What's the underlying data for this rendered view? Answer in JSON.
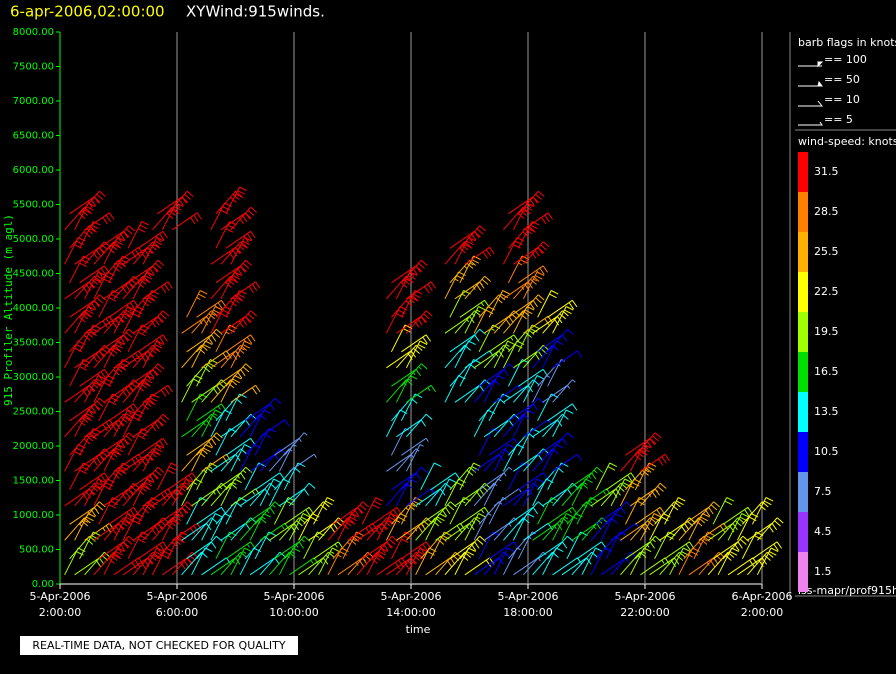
{
  "chart_data": {
    "type": "barb",
    "title": "6-apr-2006,02:00:00",
    "subtitle": "XYWind:915winds.",
    "x_label": "time",
    "y_label": "915 Profiler Altitude (m agl)",
    "note": "REAL-TIME DATA, NOT CHECKED FOR QUALITY",
    "source": "iss-mapr/prof915h",
    "xlim": [
      2,
      26
    ],
    "xticks": [
      {
        "value": 2,
        "label": "5-Apr-2006 2:00:00"
      },
      {
        "value": 6,
        "label": "5-Apr-2006 6:00:00"
      },
      {
        "value": 10,
        "label": "5-Apr-2006 10:00:00"
      },
      {
        "value": 14,
        "label": "5-Apr-2006 14:00:00"
      },
      {
        "value": 18,
        "label": "5-Apr-2006 18:00:00"
      },
      {
        "value": 22,
        "label": "5-Apr-2006 22:00:00"
      },
      {
        "value": 26,
        "label": "6-Apr-2006 2:00:00"
      }
    ],
    "ylim": [
      0,
      8000
    ],
    "yticks": [
      {
        "value": 0,
        "label": "0.00"
      },
      {
        "value": 500,
        "label": "500.00"
      },
      {
        "value": 1000,
        "label": "1000.00"
      },
      {
        "value": 1500,
        "label": "1500.00"
      },
      {
        "value": 2000,
        "label": "2000.00"
      },
      {
        "value": 2500,
        "label": "2500.00"
      },
      {
        "value": 3000,
        "label": "3000.00"
      },
      {
        "value": 3500,
        "label": "3500.00"
      },
      {
        "value": 4000,
        "label": "4000.00"
      },
      {
        "value": 4500,
        "label": "4500.00"
      },
      {
        "value": 5000,
        "label": "5000.00"
      },
      {
        "value": 5500,
        "label": "5500.00"
      },
      {
        "value": 6000,
        "label": "6000.00"
      },
      {
        "value": 6500,
        "label": "6500.00"
      },
      {
        "value": 7000,
        "label": "7000.00"
      },
      {
        "value": 7500,
        "label": "7500.00"
      },
      {
        "value": 8000,
        "label": "8000.00"
      }
    ],
    "grid": true,
    "heights": [
      250,
      750,
      1250,
      1750,
      2250,
      2750,
      3250,
      3750,
      4250,
      4750,
      5250,
      5750
    ],
    "profiles": [
      {
        "x": 2.5,
        "speeds": [
          20,
          25,
          30,
          32,
          32,
          32,
          32,
          32,
          32,
          33,
          33,
          null
        ]
      },
      {
        "x": 3.5,
        "speeds": [
          30,
          32,
          33,
          33,
          33,
          33,
          33,
          33,
          32,
          32,
          null,
          null
        ]
      },
      {
        "x": 4.5,
        "speeds": [
          30,
          32,
          32,
          32,
          32,
          32,
          32,
          32,
          32,
          32,
          null,
          null
        ]
      },
      {
        "x": 5.5,
        "speeds": [
          32,
          32,
          30,
          null,
          null,
          null,
          null,
          null,
          null,
          null,
          32,
          null
        ]
      },
      {
        "x": 6.5,
        "speeds": [
          12,
          14,
          18,
          24,
          16,
          20,
          24,
          27,
          null,
          null,
          null,
          null
        ]
      },
      {
        "x": 7.5,
        "speeds": [
          15,
          12,
          18,
          14,
          12,
          24,
          28,
          32,
          32,
          32,
          33,
          null
        ]
      },
      {
        "x": 8.5,
        "speeds": [
          14,
          17,
          12,
          10,
          11,
          null,
          null,
          null,
          null,
          null,
          null,
          null
        ]
      },
      {
        "x": 9.5,
        "speeds": [
          16,
          20,
          14,
          8,
          null,
          null,
          null,
          null,
          null,
          null,
          null,
          null
        ]
      },
      {
        "x": 10.5,
        "speeds": [
          18,
          22,
          null,
          null,
          null,
          null,
          null,
          null,
          null,
          null,
          null,
          null
        ]
      },
      {
        "x": 11.5,
        "speeds": [
          28,
          30,
          null,
          null,
          null,
          null,
          null,
          null,
          null,
          null,
          null,
          null
        ]
      },
      {
        "x": 12.5,
        "speeds": [
          32,
          31,
          null,
          null,
          null,
          null,
          null,
          null,
          null,
          null,
          null,
          null
        ]
      },
      {
        "x": 13.5,
        "speeds": [
          30,
          26,
          10,
          8,
          12,
          16,
          22,
          30,
          32,
          null,
          null,
          null
        ]
      },
      {
        "x": 14.5,
        "speeds": [
          24,
          20,
          14,
          null,
          null,
          null,
          null,
          null,
          null,
          null,
          null,
          null
        ]
      },
      {
        "x": 15.5,
        "speeds": [
          22,
          18,
          20,
          null,
          null,
          14,
          12,
          18,
          26,
          31,
          null,
          null
        ]
      },
      {
        "x": 16.5,
        "speeds": [
          10,
          8,
          6,
          10,
          12,
          10,
          18,
          24,
          null,
          null,
          null,
          null
        ]
      },
      {
        "x": 17.5,
        "speeds": [
          8,
          12,
          10,
          14,
          10,
          12,
          20,
          24,
          28,
          30,
          32,
          null
        ]
      },
      {
        "x": 18.5,
        "speeds": [
          14,
          16,
          12,
          10,
          14,
          8,
          10,
          22,
          null,
          null,
          null,
          null
        ]
      },
      {
        "x": 19.5,
        "speeds": [
          12,
          17,
          16,
          null,
          null,
          null,
          null,
          null,
          null,
          null,
          null,
          null
        ]
      },
      {
        "x": 20.5,
        "speeds": [
          10,
          11,
          20,
          null,
          null,
          null,
          null,
          null,
          null,
          null,
          null,
          null
        ]
      },
      {
        "x": 21.5,
        "speeds": [
          18,
          24,
          26,
          32,
          null,
          null,
          null,
          null,
          null,
          null,
          null,
          null
        ]
      },
      {
        "x": 22.5,
        "speeds": [
          20,
          22,
          null,
          null,
          null,
          null,
          null,
          null,
          null,
          null,
          null,
          null
        ]
      },
      {
        "x": 23.5,
        "speeds": [
          28,
          24,
          null,
          null,
          null,
          null,
          null,
          null,
          null,
          null,
          null,
          null
        ]
      },
      {
        "x": 24.5,
        "speeds": [
          22,
          20,
          null,
          null,
          null,
          null,
          null,
          null,
          null,
          null,
          null,
          null
        ]
      },
      {
        "x": 25.5,
        "speeds": [
          22,
          21,
          null,
          null,
          null,
          null,
          null,
          null,
          null,
          null,
          null,
          null
        ]
      }
    ],
    "barb_legend": {
      "title": "barb flags in knots",
      "labels": [
        "== 100",
        "== 50",
        "== 10",
        "== 5"
      ]
    },
    "colorbar": {
      "title": "wind-speed: knots",
      "values": [
        31.5,
        28.5,
        25.5,
        22.5,
        19.5,
        16.5,
        13.5,
        10.5,
        7.5,
        4.5,
        1.5
      ],
      "colors": [
        "#ff0000",
        "#ff8000",
        "#ffb000",
        "#ffff00",
        "#a0ff00",
        "#00e000",
        "#00ffff",
        "#0000ff",
        "#6495ed",
        "#9933ff",
        "#ee82ee"
      ]
    }
  }
}
